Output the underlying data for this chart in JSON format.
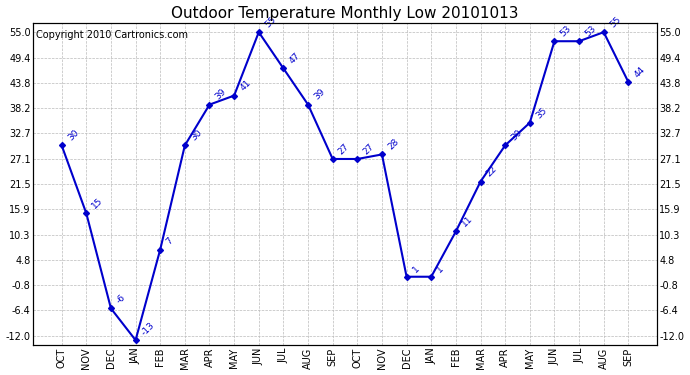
{
  "title": "Outdoor Temperature Monthly Low 20101013",
  "copyright": "Copyright 2010 Cartronics.com",
  "months": [
    "OCT",
    "NOV",
    "DEC",
    "JAN",
    "FEB",
    "MAR",
    "APR",
    "MAY",
    "JUN",
    "JUL",
    "AUG",
    "SEP",
    "OCT",
    "NOV",
    "DEC",
    "JAN",
    "FEB",
    "MAR",
    "APR",
    "MAY",
    "JUN",
    "JUL",
    "AUG",
    "SEP"
  ],
  "values": [
    30,
    15,
    -6,
    -13,
    7,
    30,
    39,
    41,
    55,
    47,
    39,
    27,
    27,
    28,
    1,
    1,
    11,
    22,
    30,
    35,
    53,
    53,
    55,
    44
  ],
  "line_color": "#0000cc",
  "marker": "D",
  "marker_size": 3,
  "ylim_min": -14.0,
  "ylim_max": 57.0,
  "yticks": [
    55.0,
    49.4,
    43.8,
    38.2,
    32.7,
    27.1,
    21.5,
    15.9,
    10.3,
    4.8,
    -0.8,
    -6.4,
    -12.0
  ],
  "title_fontsize": 11,
  "copyright_fontsize": 7,
  "label_fontsize": 6.5,
  "grid_color": "#bbbbbb",
  "bg_color": "#ffffff"
}
